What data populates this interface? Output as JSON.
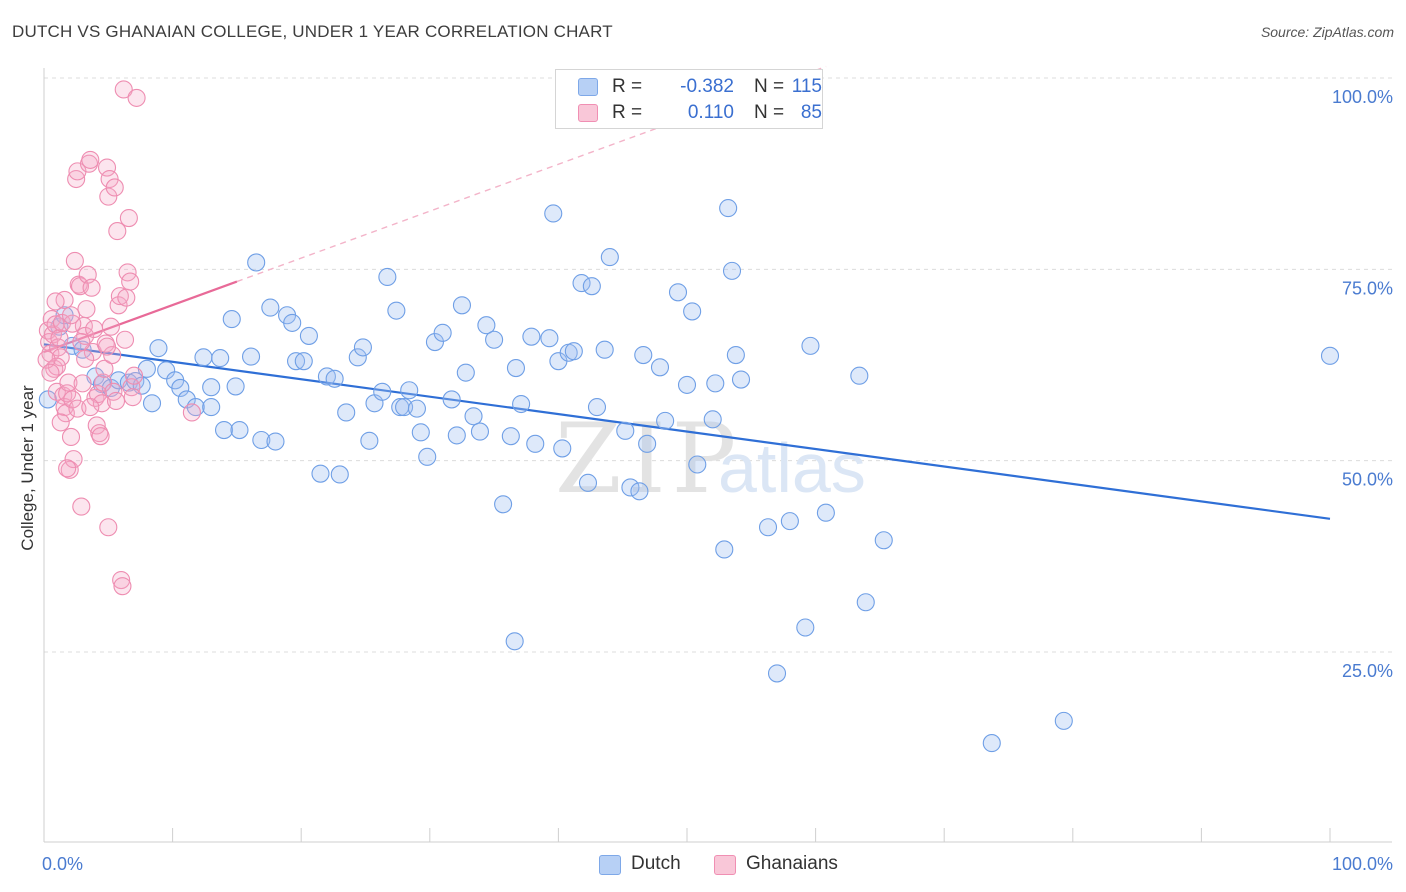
{
  "title": "DUTCH VS GHANAIAN COLLEGE, UNDER 1 YEAR CORRELATION CHART",
  "source": "Source: ZipAtlas.com",
  "watermark": {
    "zip": "ZIP",
    "atlas": "atlas"
  },
  "legend_top": {
    "rows": [
      {
        "r_label": "R =",
        "r_value": "-0.382",
        "n_label": "N =",
        "n_value": "115",
        "color": "#4a86e8"
      },
      {
        "r_label": "R =",
        "r_value": "0.110",
        "n_label": "N =",
        "n_value": "85",
        "color": "#f06292"
      }
    ]
  },
  "legend_bottom": {
    "items": [
      {
        "label": "Dutch",
        "color": "#4a86e8"
      },
      {
        "label": "Ghanaians",
        "color": "#f06292"
      }
    ]
  },
  "chart_data": {
    "type": "scatter",
    "title": "DUTCH VS GHANAIAN COLLEGE, UNDER 1 YEAR CORRELATION CHART",
    "xlabel": "",
    "ylabel": "College, Under 1 year",
    "xlim": [
      0,
      100
    ],
    "ylim": [
      5,
      107
    ],
    "x_tick_labels": [
      {
        "value": 0,
        "label": "0.0%"
      },
      {
        "value": 100,
        "label": "100.0%"
      }
    ],
    "y_tick_labels": [
      {
        "value": 25,
        "label": "25.0%"
      },
      {
        "value": 50,
        "label": "50.0%"
      },
      {
        "value": 75,
        "label": "75.0%"
      },
      {
        "value": 100,
        "label": "100.0%"
      }
    ],
    "grid": "horizontal dashed",
    "series": [
      {
        "name": "Dutch",
        "color": "#4a86e8",
        "trend": {
          "x": [
            0,
            100
          ],
          "y": [
            65.2,
            42.4
          ],
          "style": "solid"
        },
        "points": [
          [
            0.3,
            58
          ],
          [
            1.2,
            67.5
          ],
          [
            1.6,
            69
          ],
          [
            2.2,
            65
          ],
          [
            3,
            64.5
          ],
          [
            4,
            61
          ],
          [
            4.5,
            60
          ],
          [
            5.2,
            59.5
          ],
          [
            5.8,
            60.5
          ],
          [
            6.6,
            60.2
          ],
          [
            7.1,
            60.4
          ],
          [
            7.6,
            59.8
          ],
          [
            8,
            62
          ],
          [
            8.4,
            57.5
          ],
          [
            8.9,
            64.7
          ],
          [
            9.5,
            61.8
          ],
          [
            10.2,
            60.5
          ],
          [
            10.6,
            59.5
          ],
          [
            11.1,
            58
          ],
          [
            11.8,
            57
          ],
          [
            12.4,
            63.5
          ],
          [
            13.0,
            59.6
          ],
          [
            13.7,
            63.4
          ],
          [
            14.0,
            54
          ],
          [
            14.6,
            68.5
          ],
          [
            14.9,
            59.7
          ],
          [
            16.1,
            63.6
          ],
          [
            16.5,
            75.9
          ],
          [
            16.9,
            52.7
          ],
          [
            17.6,
            70
          ],
          [
            18.9,
            69
          ],
          [
            19.3,
            68
          ],
          [
            19.6,
            63.0
          ],
          [
            20.2,
            63.0
          ],
          [
            20.6,
            66.3
          ],
          [
            21.5,
            48.3
          ],
          [
            22.0,
            61.0
          ],
          [
            22.6,
            60.7
          ],
          [
            23.0,
            48.2
          ],
          [
            23.5,
            56.3
          ],
          [
            24.4,
            63.5
          ],
          [
            24.8,
            64.8
          ],
          [
            25.3,
            52.6
          ],
          [
            25.7,
            57.5
          ],
          [
            26.3,
            59.0
          ],
          [
            26.7,
            74.0
          ],
          [
            27.4,
            69.6
          ],
          [
            27.7,
            57.0
          ],
          [
            28.0,
            57.0
          ],
          [
            28.4,
            59.2
          ],
          [
            29.0,
            56.8
          ],
          [
            29.3,
            53.7
          ],
          [
            29.8,
            50.5
          ],
          [
            30.4,
            65.5
          ],
          [
            31.0,
            66.7
          ],
          [
            31.7,
            58.0
          ],
          [
            32.1,
            53.3
          ],
          [
            32.5,
            70.3
          ],
          [
            32.8,
            61.5
          ],
          [
            33.4,
            55.8
          ],
          [
            33.9,
            53.8
          ],
          [
            34.4,
            67.7
          ],
          [
            35.0,
            65.8
          ],
          [
            35.7,
            44.3
          ],
          [
            36.3,
            53.2
          ],
          [
            36.7,
            62.1
          ],
          [
            37.1,
            57.4
          ],
          [
            37.9,
            66.2
          ],
          [
            38.2,
            52.2
          ],
          [
            39.3,
            66.0
          ],
          [
            39.6,
            82.3
          ],
          [
            40.0,
            63.0
          ],
          [
            40.3,
            51.6
          ],
          [
            40.8,
            64.1
          ],
          [
            41.2,
            64.3
          ],
          [
            41.8,
            73.2
          ],
          [
            42.3,
            47.1
          ],
          [
            42.6,
            72.8
          ],
          [
            43.0,
            57.0
          ],
          [
            43.6,
            64.5
          ],
          [
            44.0,
            76.6
          ],
          [
            45.2,
            53.9
          ],
          [
            45.6,
            46.5
          ],
          [
            46.3,
            46.0
          ],
          [
            46.6,
            63.8
          ],
          [
            46.9,
            52.2
          ],
          [
            47.9,
            62.2
          ],
          [
            48.3,
            55.2
          ],
          [
            49.3,
            72.0
          ],
          [
            50.0,
            59.9
          ],
          [
            50.4,
            69.5
          ],
          [
            50.8,
            49.5
          ],
          [
            52.0,
            55.4
          ],
          [
            52.2,
            60.1
          ],
          [
            52.9,
            38.4
          ],
          [
            53.2,
            83.0
          ],
          [
            53.5,
            74.8
          ],
          [
            53.8,
            63.8
          ],
          [
            54.2,
            60.6
          ],
          [
            56.3,
            41.3
          ],
          [
            58.0,
            42.1
          ],
          [
            59.2,
            28.2
          ],
          [
            59.6,
            65.0
          ],
          [
            60.8,
            43.2
          ],
          [
            63.4,
            61.1
          ],
          [
            63.9,
            31.5
          ],
          [
            65.3,
            39.6
          ],
          [
            73.7,
            13.1
          ],
          [
            79.3,
            16.0
          ],
          [
            100.0,
            63.7
          ],
          [
            57.0,
            22.2
          ],
          [
            36.6,
            26.4
          ],
          [
            13.0,
            57.0
          ],
          [
            15.2,
            54.0
          ],
          [
            18.0,
            52.5
          ]
        ]
      },
      {
        "name": "Ghanaians",
        "color": "#f06292",
        "trend": {
          "x": [
            0,
            15
          ],
          "y": [
            64.2,
            73.4
          ],
          "style": "solid",
          "extended_to": [
            100,
            125
          ],
          "extended_style": "dashed"
        },
        "points": [
          [
            0.3,
            67
          ],
          [
            0.4,
            65.5
          ],
          [
            0.5,
            64
          ],
          [
            0.6,
            68.5
          ],
          [
            0.7,
            66.5
          ],
          [
            0.8,
            62
          ],
          [
            0.9,
            67.8
          ],
          [
            1.0,
            59
          ],
          [
            1.1,
            64.8
          ],
          [
            1.2,
            66
          ],
          [
            1.3,
            63.5
          ],
          [
            1.4,
            68
          ],
          [
            1.5,
            58.5
          ],
          [
            1.6,
            57
          ],
          [
            1.7,
            56.2
          ],
          [
            1.8,
            58.8
          ],
          [
            1.9,
            60.2
          ],
          [
            2.0,
            48.8
          ],
          [
            2.1,
            53.1
          ],
          [
            2.2,
            58.0
          ],
          [
            2.3,
            50.2
          ],
          [
            2.4,
            76.1
          ],
          [
            2.5,
            86.8
          ],
          [
            2.6,
            87.8
          ],
          [
            2.7,
            73.0
          ],
          [
            2.8,
            72.8
          ],
          [
            2.9,
            44.0
          ],
          [
            3.0,
            60.1
          ],
          [
            3.1,
            67.6
          ],
          [
            3.2,
            66.3
          ],
          [
            3.3,
            69.8
          ],
          [
            3.4,
            74.3
          ],
          [
            3.5,
            88.8
          ],
          [
            3.6,
            89.3
          ],
          [
            3.7,
            72.6
          ],
          [
            3.8,
            64.2
          ],
          [
            3.9,
            67.2
          ],
          [
            4.0,
            58.2
          ],
          [
            4.1,
            54.6
          ],
          [
            4.2,
            58.7
          ],
          [
            4.3,
            53.6
          ],
          [
            4.5,
            57.5
          ],
          [
            4.6,
            60.2
          ],
          [
            4.7,
            62.0
          ],
          [
            4.8,
            65.3
          ],
          [
            4.9,
            88.3
          ],
          [
            5.0,
            84.5
          ],
          [
            5.1,
            86.8
          ],
          [
            5.2,
            67.5
          ],
          [
            5.3,
            63.8
          ],
          [
            5.4,
            59.0
          ],
          [
            5.5,
            85.7
          ],
          [
            5.6,
            57.8
          ],
          [
            5.7,
            80.0
          ],
          [
            5.8,
            70.3
          ],
          [
            5.9,
            71.5
          ],
          [
            6.0,
            34.4
          ],
          [
            6.1,
            33.6
          ],
          [
            6.2,
            98.5
          ],
          [
            6.3,
            65.8
          ],
          [
            6.4,
            71.3
          ],
          [
            6.5,
            74.6
          ],
          [
            6.6,
            81.7
          ],
          [
            6.7,
            73.4
          ],
          [
            6.8,
            59.6
          ],
          [
            6.9,
            58.3
          ],
          [
            7.0,
            61.1
          ],
          [
            7.2,
            97.4
          ],
          [
            5.0,
            41.3
          ],
          [
            4.4,
            53.2
          ],
          [
            1.6,
            71.0
          ],
          [
            2.2,
            67.9
          ],
          [
            3.2,
            63.3
          ],
          [
            1.0,
            62.3
          ],
          [
            11.5,
            56.3
          ],
          [
            0.2,
            63.2
          ],
          [
            0.5,
            61.5
          ],
          [
            1.8,
            49.0
          ],
          [
            2.6,
            56.8
          ],
          [
            3.6,
            57.0
          ],
          [
            4.9,
            64.9
          ],
          [
            1.3,
            55.0
          ],
          [
            2.1,
            69.0
          ],
          [
            0.9,
            70.8
          ],
          [
            2.9,
            65.5
          ]
        ]
      }
    ]
  }
}
